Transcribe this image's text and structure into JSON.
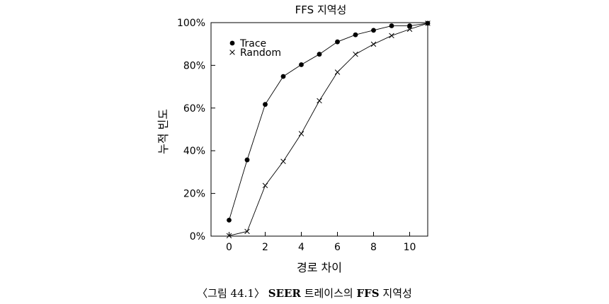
{
  "chart_data": {
    "type": "line",
    "title": "FFS 지역성",
    "xlabel": "경로 차이",
    "ylabel": "누적 빈도",
    "xlim": [
      -1,
      11
    ],
    "ylim": [
      0,
      100
    ],
    "x_ticks": [
      0,
      2,
      4,
      6,
      8,
      10
    ],
    "y_ticks": [
      0,
      20,
      40,
      60,
      80,
      100
    ],
    "y_tick_labels": [
      "0%",
      "20%",
      "40%",
      "60%",
      "80%",
      "100%"
    ],
    "legend_position": "top-left",
    "grid": false,
    "series": [
      {
        "name": "Trace",
        "marker": "filled-circle",
        "x": [
          0,
          1,
          2,
          3,
          4,
          5,
          6,
          7,
          8,
          9,
          10,
          11
        ],
        "values": [
          7.5,
          35.7,
          61.7,
          74.8,
          80.3,
          85.2,
          91.0,
          94.3,
          96.4,
          98.5,
          98.5,
          99.7
        ]
      },
      {
        "name": "Random",
        "marker": "x",
        "x": [
          0,
          1,
          2,
          3,
          4,
          5,
          6,
          7,
          8,
          9,
          10,
          11
        ],
        "values": [
          0.2,
          2.2,
          23.7,
          35.0,
          48.0,
          63.4,
          76.8,
          85.2,
          89.9,
          93.9,
          96.9,
          99.7
        ]
      }
    ]
  },
  "caption": {
    "prefix": "〈그림 44.1〉",
    "bold": "SEER",
    "middle": "트레이스의",
    "bold2": "FFS",
    "suffix": "지역성"
  }
}
